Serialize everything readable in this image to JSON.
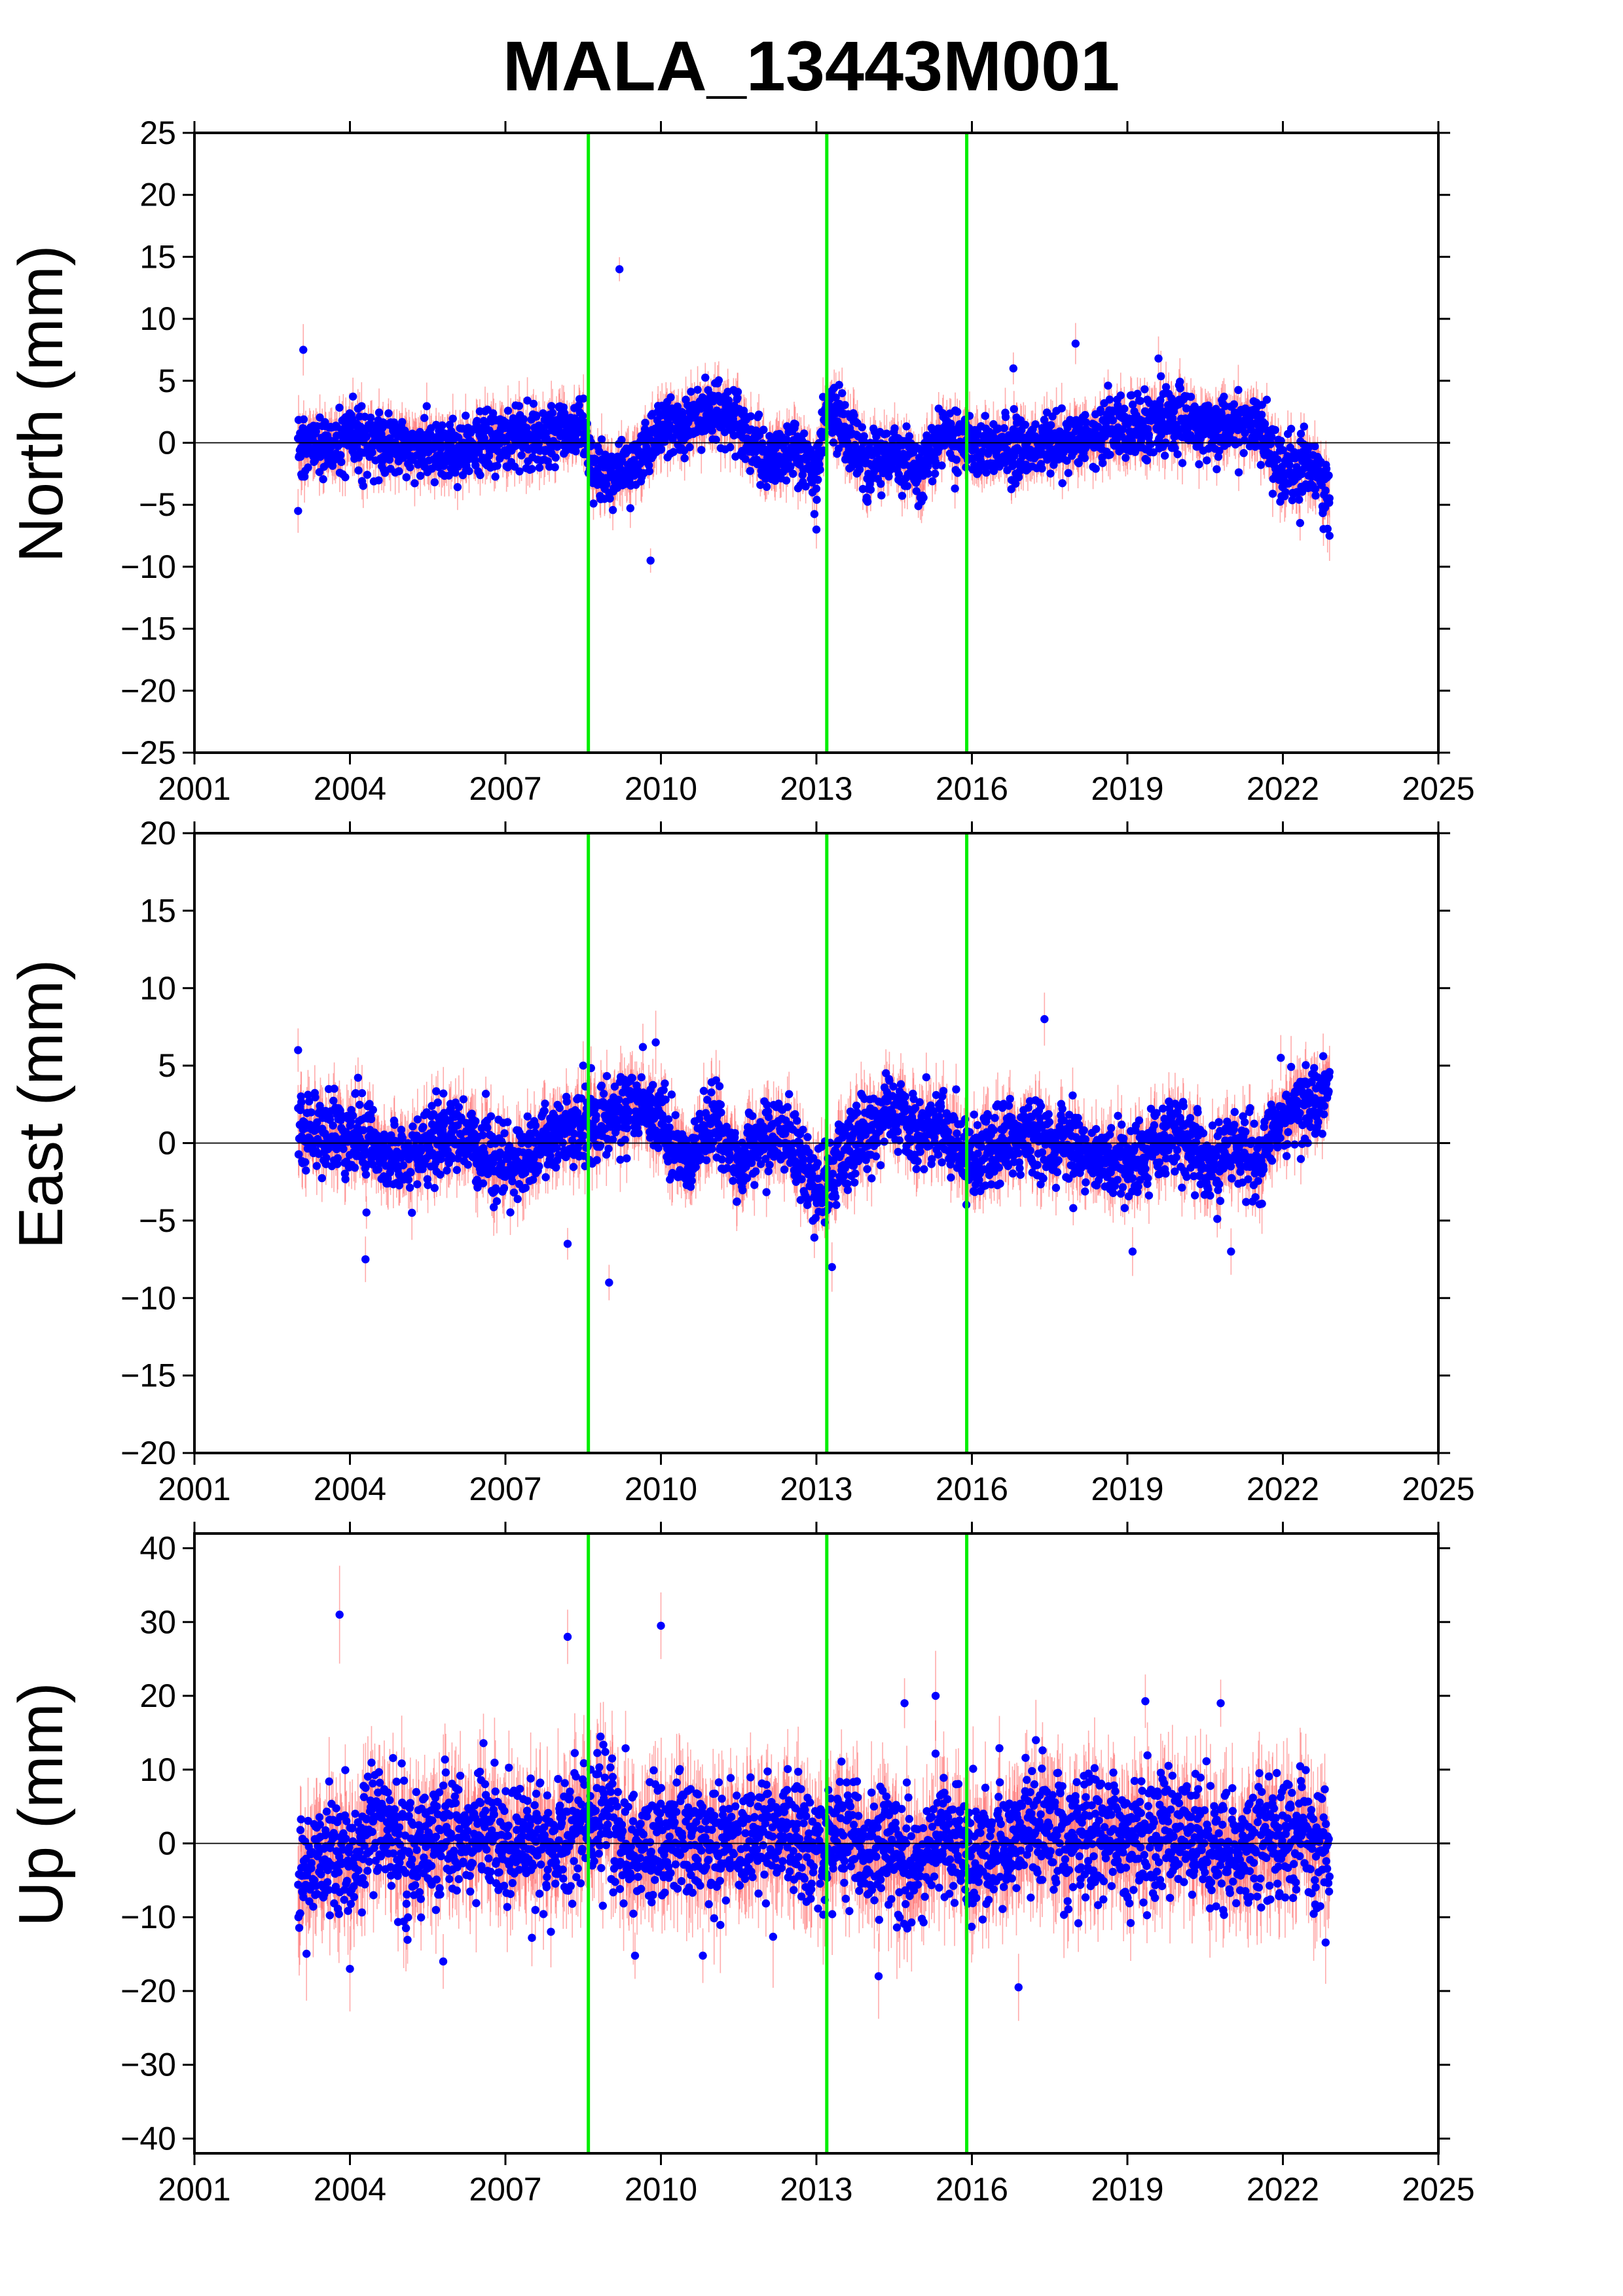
{
  "title": "MALA_13443M001",
  "colors": {
    "points": "#0000ff",
    "error_bars": "#ff6666",
    "event_lines": "#00ee00",
    "zero_line": "#000000",
    "frame": "#000000"
  },
  "chart_data": [
    {
      "type": "scatter",
      "ylabel": "North (mm)",
      "xlim": [
        2001,
        2025
      ],
      "ylim": [
        -25,
        25
      ],
      "x_ticks": [
        2001,
        2004,
        2007,
        2010,
        2013,
        2016,
        2019,
        2022,
        2025
      ],
      "x_tick_labels": [
        "2001",
        "2004",
        "2007",
        "2010",
        "2013",
        "2016",
        "2019",
        "2022",
        "2025"
      ],
      "y_ticks": [
        -25,
        -20,
        -15,
        -10,
        -5,
        0,
        5,
        10,
        15,
        20,
        25
      ],
      "y_tick_labels": [
        "−25",
        "−20",
        "−15",
        "−10",
        "−5",
        "0",
        "5",
        "10",
        "15",
        "20",
        "25"
      ],
      "event_lines_x": [
        2008.6,
        2013.2,
        2015.9
      ],
      "data_span": [
        2003.0,
        2022.9
      ],
      "typical_error_mm": 1.5,
      "series_trend": [
        [
          2003.0,
          -0.5
        ],
        [
          2004.0,
          0.3
        ],
        [
          2005.0,
          -0.3
        ],
        [
          2006.0,
          -0.8
        ],
        [
          2007.0,
          0.4
        ],
        [
          2008.0,
          0.8
        ],
        [
          2008.5,
          1.2
        ],
        [
          2008.7,
          -2.5
        ],
        [
          2009.5,
          -2.0
        ],
        [
          2010.0,
          2.0
        ],
        [
          2010.5,
          1.0
        ],
        [
          2011.0,
          3.0
        ],
        [
          2011.5,
          1.5
        ],
        [
          2012.0,
          -1.5
        ],
        [
          2012.5,
          -0.5
        ],
        [
          2013.0,
          -2.5
        ],
        [
          2013.2,
          3.0
        ],
        [
          2013.5,
          1.0
        ],
        [
          2014.0,
          -2.0
        ],
        [
          2014.5,
          -1.0
        ],
        [
          2015.0,
          -2.5
        ],
        [
          2015.5,
          0.5
        ],
        [
          2016.0,
          0.0
        ],
        [
          2017.0,
          -0.5
        ],
        [
          2018.0,
          0.5
        ],
        [
          2019.0,
          0.8
        ],
        [
          2020.0,
          2.0
        ],
        [
          2020.5,
          1.0
        ],
        [
          2021.0,
          1.5
        ],
        [
          2021.5,
          1.5
        ],
        [
          2022.0,
          -2.5
        ],
        [
          2022.5,
          -1.5
        ],
        [
          2022.9,
          -4.5
        ]
      ],
      "notable_points": [
        [
          2003.1,
          7.5
        ],
        [
          2003.0,
          -5.5
        ],
        [
          2009.2,
          14.0
        ],
        [
          2009.8,
          -9.5
        ],
        [
          2013.0,
          -7.0
        ],
        [
          2016.8,
          6.0
        ],
        [
          2018.0,
          8.0
        ],
        [
          2019.6,
          6.8
        ],
        [
          2022.9,
          -7.5
        ]
      ]
    },
    {
      "type": "scatter",
      "ylabel": "East (mm)",
      "xlim": [
        2001,
        2025
      ],
      "ylim": [
        -20,
        20
      ],
      "x_ticks": [
        2001,
        2004,
        2007,
        2010,
        2013,
        2016,
        2019,
        2022,
        2025
      ],
      "x_tick_labels": [
        "2001",
        "2004",
        "2007",
        "2010",
        "2013",
        "2016",
        "2019",
        "2022",
        "2025"
      ],
      "y_ticks": [
        -20,
        -15,
        -10,
        -5,
        0,
        5,
        10,
        15,
        20
      ],
      "y_tick_labels": [
        "−20",
        "−15",
        "−10",
        "−5",
        "0",
        "5",
        "10",
        "15",
        "20"
      ],
      "event_lines_x": [
        2008.6,
        2013.2,
        2015.9
      ],
      "data_span": [
        2003.0,
        2022.9
      ],
      "typical_error_mm": 1.5,
      "series_trend": [
        [
          2003.0,
          1.0
        ],
        [
          2004.0,
          0.5
        ],
        [
          2005.0,
          -1.0
        ],
        [
          2006.0,
          0.5
        ],
        [
          2007.0,
          -1.5
        ],
        [
          2008.0,
          0.5
        ],
        [
          2008.5,
          1.0
        ],
        [
          2009.0,
          1.5
        ],
        [
          2009.5,
          2.5
        ],
        [
          2010.0,
          1.5
        ],
        [
          2010.5,
          -1.5
        ],
        [
          2011.0,
          1.5
        ],
        [
          2011.5,
          -1.5
        ],
        [
          2012.0,
          0.5
        ],
        [
          2012.5,
          0.0
        ],
        [
          2013.0,
          -3.0
        ],
        [
          2013.5,
          -1.0
        ],
        [
          2014.0,
          1.0
        ],
        [
          2014.5,
          2.0
        ],
        [
          2015.0,
          0.5
        ],
        [
          2015.5,
          1.0
        ],
        [
          2016.0,
          -1.0
        ],
        [
          2017.0,
          0.5
        ],
        [
          2018.0,
          -0.5
        ],
        [
          2019.0,
          -1.5
        ],
        [
          2020.0,
          1.0
        ],
        [
          2020.5,
          -1.5
        ],
        [
          2021.0,
          -0.5
        ],
        [
          2021.5,
          -1.5
        ],
        [
          2022.0,
          2.0
        ],
        [
          2022.5,
          2.5
        ],
        [
          2022.9,
          3.5
        ]
      ],
      "notable_points": [
        [
          2003.0,
          6.0
        ],
        [
          2004.3,
          -7.5
        ],
        [
          2008.2,
          -6.5
        ],
        [
          2008.5,
          5.0
        ],
        [
          2009.0,
          -9.0
        ],
        [
          2009.9,
          6.5
        ],
        [
          2013.3,
          -8.0
        ],
        [
          2017.4,
          8.0
        ],
        [
          2019.1,
          -7.0
        ],
        [
          2021.0,
          -7.0
        ]
      ]
    },
    {
      "type": "scatter",
      "ylabel": "Up (mm)",
      "xlim": [
        2001,
        2025
      ],
      "ylim": [
        -42,
        42
      ],
      "x_ticks": [
        2001,
        2004,
        2007,
        2010,
        2013,
        2016,
        2019,
        2022,
        2025
      ],
      "x_tick_labels": [
        "2001",
        "2004",
        "2007",
        "2010",
        "2013",
        "2016",
        "2019",
        "2022",
        "2025"
      ],
      "y_ticks": [
        -40,
        -30,
        -20,
        -10,
        0,
        10,
        20,
        30,
        40
      ],
      "y_tick_labels": [
        "−40",
        "−30",
        "−20",
        "−10",
        "0",
        "10",
        "20",
        "30",
        "40"
      ],
      "event_lines_x": [
        2008.6,
        2013.2,
        2015.9
      ],
      "data_span": [
        2003.0,
        2022.9
      ],
      "typical_error_mm": 5.0,
      "series_trend": [
        [
          2003.0,
          -8.0
        ],
        [
          2003.3,
          0.0
        ],
        [
          2004.0,
          -3.0
        ],
        [
          2004.5,
          3.0
        ],
        [
          2005.0,
          -1.0
        ],
        [
          2006.0,
          2.0
        ],
        [
          2007.0,
          -1.0
        ],
        [
          2008.0,
          0.0
        ],
        [
          2008.6,
          3.0
        ],
        [
          2009.0,
          4.0
        ],
        [
          2009.5,
          -1.0
        ],
        [
          2010.0,
          1.0
        ],
        [
          2011.0,
          -1.0
        ],
        [
          2012.0,
          2.0
        ],
        [
          2013.0,
          -1.0
        ],
        [
          2013.5,
          3.0
        ],
        [
          2014.0,
          0.0
        ],
        [
          2015.0,
          -3.0
        ],
        [
          2015.5,
          2.0
        ],
        [
          2016.0,
          -2.0
        ],
        [
          2017.0,
          2.0
        ],
        [
          2018.0,
          1.0
        ],
        [
          2019.0,
          0.0
        ],
        [
          2020.0,
          2.0
        ],
        [
          2021.0,
          -1.0
        ],
        [
          2022.0,
          1.0
        ],
        [
          2022.9,
          0.0
        ]
      ],
      "notable_points": [
        [
          2003.8,
          31.0
        ],
        [
          2008.2,
          28.0
        ],
        [
          2010.0,
          29.5
        ],
        [
          2004.0,
          -17.0
        ],
        [
          2005.8,
          -16.0
        ],
        [
          2014.2,
          -18.0
        ],
        [
          2016.9,
          -19.5
        ],
        [
          2014.7,
          19.0
        ],
        [
          2015.3,
          20.0
        ],
        [
          2020.8,
          19.0
        ]
      ]
    }
  ]
}
